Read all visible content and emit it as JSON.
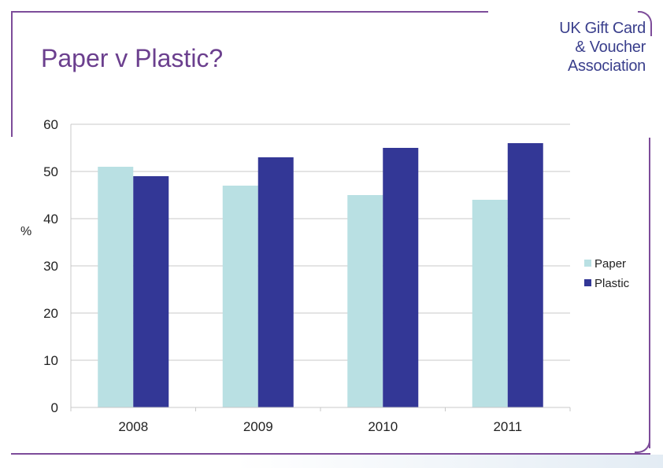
{
  "slide": {
    "title": "Paper v Plastic?",
    "logo": {
      "line1": "UK Gift Card",
      "line2": "& Voucher",
      "line3": "Association"
    },
    "colors": {
      "frame": "#7d4c9a",
      "title": "#6b3f8e",
      "logo": "#3a3f8c"
    }
  },
  "chart_data": {
    "type": "bar",
    "categories": [
      "2008",
      "2009",
      "2010",
      "2011"
    ],
    "series": [
      {
        "name": "Paper",
        "values": [
          51,
          47,
          45,
          44
        ],
        "color": "#b9e0e3"
      },
      {
        "name": "Plastic",
        "values": [
          49,
          53,
          55,
          56
        ],
        "color": "#333796"
      }
    ],
    "title": "",
    "xlabel": "",
    "ylabel": "%",
    "ylim": [
      0,
      60
    ],
    "yticks": [
      "0",
      "10",
      "20",
      "30",
      "40",
      "50",
      "60"
    ],
    "grid": true,
    "legend": "right"
  }
}
